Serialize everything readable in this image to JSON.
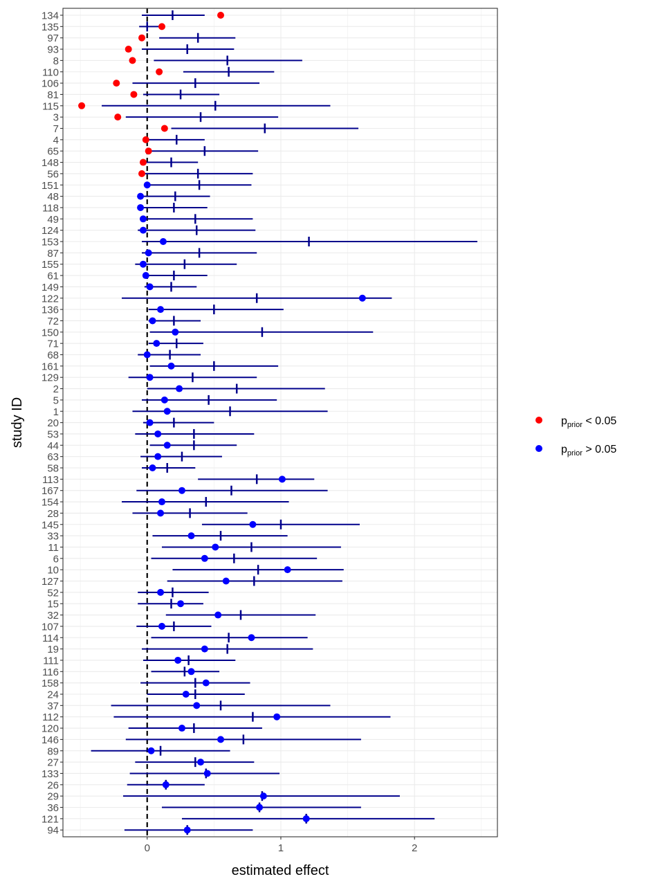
{
  "chart_data": {
    "type": "forest",
    "xlabel": "estimated effect",
    "ylabel": "study ID",
    "xlim": [
      -0.63,
      2.62
    ],
    "x_ticks": [
      0,
      1,
      2
    ],
    "reference_line_x": 0,
    "colors": {
      "ci_line": "#00008B",
      "red": "#FF0000",
      "blue": "#0000FF",
      "ref_line": "#000000"
    },
    "legend": [
      {
        "label_main": "p",
        "label_sub": "prior",
        "label_rest": " < 0.05",
        "color": "red"
      },
      {
        "label_main": "p",
        "label_sub": "prior",
        "label_rest": " > 0.05",
        "color": "blue"
      }
    ],
    "studies": [
      {
        "id": "134",
        "lo": -0.04,
        "hi": 0.43,
        "est": 0.19,
        "prior": 0.55,
        "group": "red"
      },
      {
        "id": "135",
        "lo": -0.06,
        "hi": 0.1,
        "est": 0.0,
        "prior": 0.11,
        "group": "red"
      },
      {
        "id": "97",
        "lo": 0.09,
        "hi": 0.66,
        "est": 0.38,
        "prior": -0.04,
        "group": "red"
      },
      {
        "id": "93",
        "lo": -0.04,
        "hi": 0.65,
        "est": 0.3,
        "prior": -0.14,
        "group": "red"
      },
      {
        "id": "8",
        "lo": 0.05,
        "hi": 1.16,
        "est": 0.6,
        "prior": -0.11,
        "group": "red"
      },
      {
        "id": "110",
        "lo": 0.27,
        "hi": 0.95,
        "est": 0.61,
        "prior": 0.09,
        "group": "red"
      },
      {
        "id": "106",
        "lo": -0.11,
        "hi": 0.84,
        "est": 0.36,
        "prior": -0.23,
        "group": "red"
      },
      {
        "id": "81",
        "lo": -0.03,
        "hi": 0.54,
        "est": 0.25,
        "prior": -0.1,
        "group": "red"
      },
      {
        "id": "115",
        "lo": -0.34,
        "hi": 1.37,
        "est": 0.51,
        "prior": -0.49,
        "group": "red"
      },
      {
        "id": "3",
        "lo": -0.16,
        "hi": 0.98,
        "est": 0.4,
        "prior": -0.22,
        "group": "red"
      },
      {
        "id": "7",
        "lo": 0.18,
        "hi": 1.58,
        "est": 0.88,
        "prior": 0.13,
        "group": "red"
      },
      {
        "id": "4",
        "lo": 0.01,
        "hi": 0.43,
        "est": 0.22,
        "prior": -0.01,
        "group": "red"
      },
      {
        "id": "65",
        "lo": 0.02,
        "hi": 0.83,
        "est": 0.43,
        "prior": 0.01,
        "group": "red"
      },
      {
        "id": "148",
        "lo": -0.02,
        "hi": 0.38,
        "est": 0.18,
        "prior": -0.03,
        "group": "red"
      },
      {
        "id": "56",
        "lo": -0.03,
        "hi": 0.79,
        "est": 0.38,
        "prior": -0.04,
        "group": "red"
      },
      {
        "id": "151",
        "lo": -0.02,
        "hi": 0.78,
        "est": 0.39,
        "prior": 0.0,
        "group": "blue"
      },
      {
        "id": "48",
        "lo": -0.04,
        "hi": 0.47,
        "est": 0.21,
        "prior": -0.05,
        "group": "blue"
      },
      {
        "id": "118",
        "lo": -0.04,
        "hi": 0.45,
        "est": 0.2,
        "prior": -0.05,
        "group": "blue"
      },
      {
        "id": "49",
        "lo": -0.05,
        "hi": 0.79,
        "est": 0.36,
        "prior": -0.03,
        "group": "blue"
      },
      {
        "id": "124",
        "lo": -0.07,
        "hi": 0.81,
        "est": 0.37,
        "prior": -0.03,
        "group": "blue"
      },
      {
        "id": "153",
        "lo": -0.04,
        "hi": 2.47,
        "est": 1.21,
        "prior": 0.12,
        "group": "blue"
      },
      {
        "id": "87",
        "lo": -0.04,
        "hi": 0.82,
        "est": 0.39,
        "prior": 0.01,
        "group": "blue"
      },
      {
        "id": "155",
        "lo": -0.09,
        "hi": 0.67,
        "est": 0.28,
        "prior": -0.03,
        "group": "blue"
      },
      {
        "id": "61",
        "lo": -0.02,
        "hi": 0.45,
        "est": 0.2,
        "prior": -0.01,
        "group": "blue"
      },
      {
        "id": "149",
        "lo": -0.02,
        "hi": 0.37,
        "est": 0.18,
        "prior": 0.02,
        "group": "blue"
      },
      {
        "id": "122",
        "lo": -0.19,
        "hi": 1.83,
        "est": 0.82,
        "prior": 1.61,
        "group": "blue"
      },
      {
        "id": "136",
        "lo": 0.01,
        "hi": 1.02,
        "est": 0.5,
        "prior": 0.1,
        "group": "blue"
      },
      {
        "id": "72",
        "lo": 0.01,
        "hi": 0.4,
        "est": 0.2,
        "prior": 0.04,
        "group": "blue"
      },
      {
        "id": "150",
        "lo": 0.02,
        "hi": 1.69,
        "est": 0.86,
        "prior": 0.21,
        "group": "blue"
      },
      {
        "id": "71",
        "lo": 0.01,
        "hi": 0.42,
        "est": 0.22,
        "prior": 0.07,
        "group": "blue"
      },
      {
        "id": "68",
        "lo": -0.07,
        "hi": 0.4,
        "est": 0.17,
        "prior": 0.0,
        "group": "blue"
      },
      {
        "id": "161",
        "lo": 0.02,
        "hi": 0.98,
        "est": 0.5,
        "prior": 0.18,
        "group": "blue"
      },
      {
        "id": "129",
        "lo": -0.14,
        "hi": 0.82,
        "est": 0.34,
        "prior": 0.02,
        "group": "blue"
      },
      {
        "id": "2",
        "lo": 0.0,
        "hi": 1.33,
        "est": 0.67,
        "prior": 0.24,
        "group": "blue"
      },
      {
        "id": "5",
        "lo": -0.04,
        "hi": 0.97,
        "est": 0.46,
        "prior": 0.13,
        "group": "blue"
      },
      {
        "id": "1",
        "lo": -0.11,
        "hi": 1.35,
        "est": 0.62,
        "prior": 0.15,
        "group": "blue"
      },
      {
        "id": "20",
        "lo": -0.03,
        "hi": 0.5,
        "est": 0.2,
        "prior": 0.02,
        "group": "blue"
      },
      {
        "id": "53",
        "lo": -0.09,
        "hi": 0.8,
        "est": 0.35,
        "prior": 0.08,
        "group": "blue"
      },
      {
        "id": "44",
        "lo": 0.02,
        "hi": 0.67,
        "est": 0.35,
        "prior": 0.15,
        "group": "blue"
      },
      {
        "id": "63",
        "lo": -0.05,
        "hi": 0.56,
        "est": 0.26,
        "prior": 0.08,
        "group": "blue"
      },
      {
        "id": "58",
        "lo": -0.04,
        "hi": 0.36,
        "est": 0.15,
        "prior": 0.04,
        "group": "blue"
      },
      {
        "id": "113",
        "lo": 0.38,
        "hi": 1.25,
        "est": 0.82,
        "prior": 1.01,
        "group": "blue"
      },
      {
        "id": "167",
        "lo": -0.08,
        "hi": 1.35,
        "est": 0.63,
        "prior": 0.26,
        "group": "blue"
      },
      {
        "id": "154",
        "lo": -0.19,
        "hi": 1.06,
        "est": 0.44,
        "prior": 0.11,
        "group": "blue"
      },
      {
        "id": "28",
        "lo": -0.11,
        "hi": 0.75,
        "est": 0.32,
        "prior": 0.1,
        "group": "blue"
      },
      {
        "id": "145",
        "lo": 0.41,
        "hi": 1.59,
        "est": 1.0,
        "prior": 0.79,
        "group": "blue"
      },
      {
        "id": "33",
        "lo": 0.04,
        "hi": 1.05,
        "est": 0.55,
        "prior": 0.33,
        "group": "blue"
      },
      {
        "id": "11",
        "lo": 0.11,
        "hi": 1.45,
        "est": 0.78,
        "prior": 0.51,
        "group": "blue"
      },
      {
        "id": "6",
        "lo": 0.03,
        "hi": 1.27,
        "est": 0.65,
        "prior": 0.43,
        "group": "blue"
      },
      {
        "id": "10",
        "lo": 0.19,
        "hi": 1.47,
        "est": 0.83,
        "prior": 1.05,
        "group": "blue"
      },
      {
        "id": "127",
        "lo": 0.15,
        "hi": 1.46,
        "est": 0.8,
        "prior": 0.59,
        "group": "blue"
      },
      {
        "id": "52",
        "lo": -0.07,
        "hi": 0.46,
        "est": 0.19,
        "prior": 0.1,
        "group": "blue"
      },
      {
        "id": "15",
        "lo": -0.07,
        "hi": 0.42,
        "est": 0.18,
        "prior": 0.25,
        "group": "blue"
      },
      {
        "id": "32",
        "lo": 0.14,
        "hi": 1.26,
        "est": 0.7,
        "prior": 0.53,
        "group": "blue"
      },
      {
        "id": "107",
        "lo": -0.08,
        "hi": 0.48,
        "est": 0.2,
        "prior": 0.11,
        "group": "blue"
      },
      {
        "id": "114",
        "lo": 0.03,
        "hi": 1.2,
        "est": 0.61,
        "prior": 0.78,
        "group": "blue"
      },
      {
        "id": "19",
        "lo": -0.04,
        "hi": 1.24,
        "est": 0.6,
        "prior": 0.43,
        "group": "blue"
      },
      {
        "id": "111",
        "lo": -0.03,
        "hi": 0.66,
        "est": 0.31,
        "prior": 0.23,
        "group": "blue"
      },
      {
        "id": "116",
        "lo": 0.03,
        "hi": 0.54,
        "est": 0.28,
        "prior": 0.33,
        "group": "blue"
      },
      {
        "id": "158",
        "lo": -0.05,
        "hi": 0.77,
        "est": 0.36,
        "prior": 0.44,
        "group": "blue"
      },
      {
        "id": "24",
        "lo": 0.0,
        "hi": 0.73,
        "est": 0.36,
        "prior": 0.29,
        "group": "blue"
      },
      {
        "id": "37",
        "lo": -0.27,
        "hi": 1.37,
        "est": 0.55,
        "prior": 0.37,
        "group": "blue"
      },
      {
        "id": "112",
        "lo": -0.25,
        "hi": 1.82,
        "est": 0.79,
        "prior": 0.97,
        "group": "blue"
      },
      {
        "id": "120",
        "lo": -0.14,
        "hi": 0.86,
        "est": 0.35,
        "prior": 0.26,
        "group": "blue"
      },
      {
        "id": "146",
        "lo": -0.16,
        "hi": 1.6,
        "est": 0.72,
        "prior": 0.55,
        "group": "blue"
      },
      {
        "id": "89",
        "lo": -0.42,
        "hi": 0.62,
        "est": 0.1,
        "prior": 0.03,
        "group": "blue"
      },
      {
        "id": "27",
        "lo": -0.09,
        "hi": 0.8,
        "est": 0.36,
        "prior": 0.4,
        "group": "blue"
      },
      {
        "id": "133",
        "lo": -0.13,
        "hi": 0.99,
        "est": 0.44,
        "prior": 0.45,
        "group": "blue"
      },
      {
        "id": "26",
        "lo": -0.15,
        "hi": 0.43,
        "est": 0.14,
        "prior": 0.14,
        "group": "blue"
      },
      {
        "id": "29",
        "lo": -0.18,
        "hi": 1.89,
        "est": 0.86,
        "prior": 0.87,
        "group": "blue"
      },
      {
        "id": "36",
        "lo": 0.11,
        "hi": 1.6,
        "est": 0.84,
        "prior": 0.84,
        "group": "blue"
      },
      {
        "id": "121",
        "lo": 0.26,
        "hi": 2.15,
        "est": 1.19,
        "prior": 1.19,
        "group": "blue"
      },
      {
        "id": "94",
        "lo": -0.17,
        "hi": 0.79,
        "est": 0.3,
        "prior": 0.3,
        "group": "blue"
      }
    ]
  }
}
